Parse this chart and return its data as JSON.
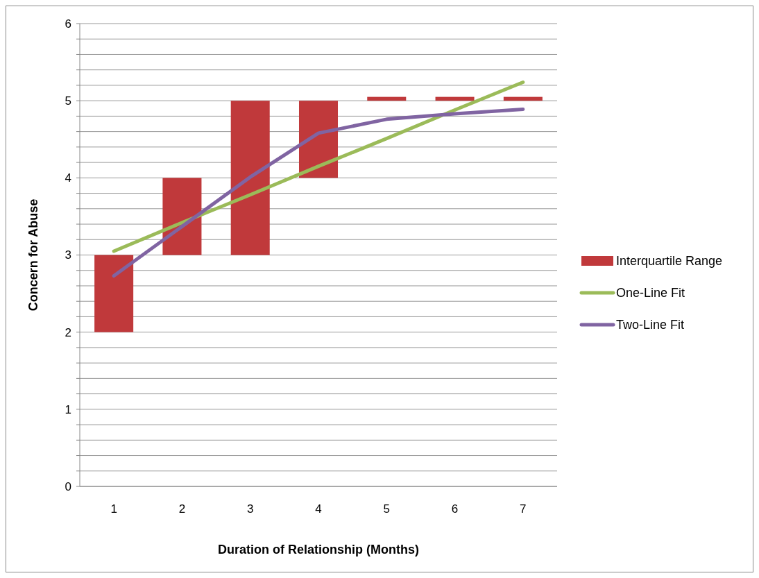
{
  "chart_data": {
    "type": "line",
    "xlabel": "Duration of Relationship (Months)",
    "ylabel": "Concern for Abuse",
    "categories": [
      "1",
      "2",
      "3",
      "4",
      "5",
      "6",
      "7"
    ],
    "ylim": [
      0,
      6
    ],
    "yticks": [
      0,
      {
        "value": 0.2,
        "label": null
      },
      {
        "value": 0.4,
        "label": null
      },
      {
        "value": 0.6,
        "label": null
      },
      {
        "value": 0.8,
        "label": null
      },
      1,
      {
        "value": 1.2,
        "label": null
      },
      {
        "value": 1.4,
        "label": null
      },
      {
        "value": 1.6,
        "label": null
      },
      {
        "value": 1.8,
        "label": null
      },
      2,
      {
        "value": 2.2,
        "label": null
      },
      {
        "value": 2.4,
        "label": null
      },
      {
        "value": 2.6,
        "label": null
      },
      {
        "value": 2.8,
        "label": null
      },
      3,
      {
        "value": 3.2,
        "label": null
      },
      {
        "value": 3.4,
        "label": null
      },
      {
        "value": 3.6,
        "label": null
      },
      {
        "value": 3.8,
        "label": null
      },
      4,
      {
        "value": 4.2,
        "label": null
      },
      {
        "value": 4.4,
        "label": null
      },
      {
        "value": 4.6,
        "label": null
      },
      {
        "value": 4.8,
        "label": null
      },
      5,
      {
        "value": 5.2,
        "label": null
      },
      {
        "value": 5.4,
        "label": null
      },
      {
        "value": 5.6,
        "label": null
      },
      {
        "value": 5.8,
        "label": null
      },
      6
    ],
    "grid": "y",
    "legend": "right",
    "series": [
      {
        "name": "Interquartile Range",
        "type": "bar",
        "color": "#c0393b",
        "base": [
          2,
          3,
          3,
          4,
          5,
          5,
          5
        ],
        "values": [
          1,
          1,
          2,
          1,
          0.05,
          0.05,
          0.05
        ]
      },
      {
        "name": "One-Line Fit",
        "color": "#9bbb59",
        "values": [
          3.05,
          3.42,
          3.78,
          4.15,
          4.51,
          4.88,
          5.24
        ]
      },
      {
        "name": "Two-Line Fit",
        "color": "#8064a2",
        "values": [
          2.73,
          3.37,
          4.01,
          4.58,
          4.76,
          4.83,
          4.89
        ]
      }
    ]
  }
}
